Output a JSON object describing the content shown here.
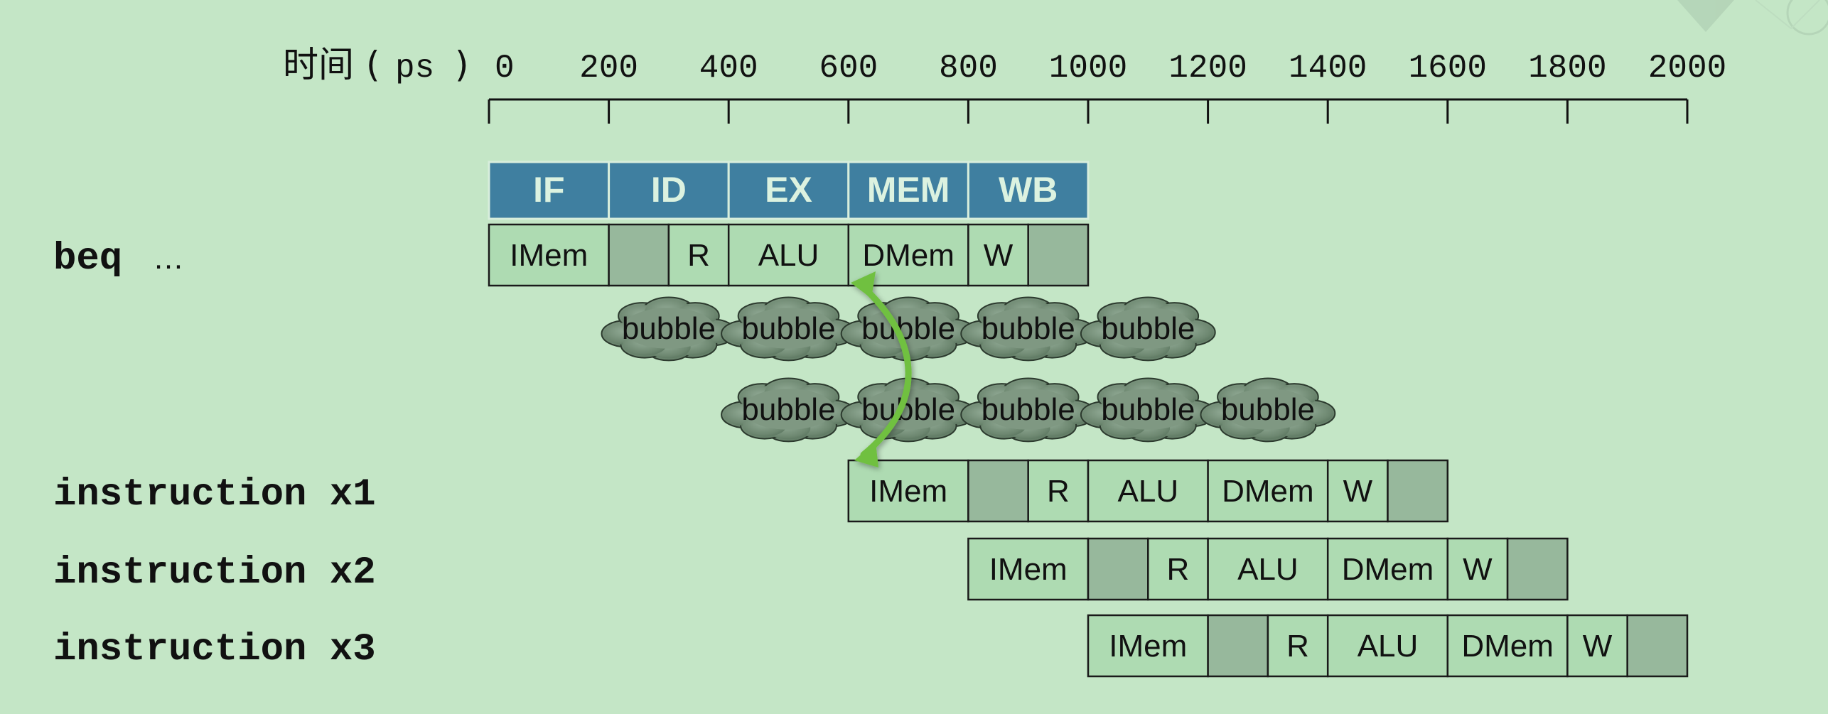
{
  "diagram": {
    "time_axis": {
      "label_prefix": "时间",
      "paren_open": "(",
      "unit": "ps",
      "paren_close": ")",
      "ticks": [
        "0",
        "200",
        "400",
        "600",
        "800",
        "1000",
        "1200",
        "1400",
        "1600",
        "1800",
        "2000"
      ]
    },
    "stage_header": [
      "IF",
      "ID",
      "EX",
      "MEM",
      "WB"
    ],
    "instructions": [
      {
        "label_main": "beq",
        "label_suffix": "…",
        "start_ps": 0,
        "cells": [
          "IMem",
          "",
          "R",
          "ALU",
          "DMem",
          "W",
          ""
        ]
      },
      {
        "label_main": "instruction x1",
        "label_suffix": "",
        "start_ps": 600,
        "cells": [
          "IMem",
          "",
          "R",
          "ALU",
          "DMem",
          "W",
          ""
        ]
      },
      {
        "label_main": "instruction x2",
        "label_suffix": "",
        "start_ps": 800,
        "cells": [
          "IMem",
          "",
          "R",
          "ALU",
          "DMem",
          "W",
          ""
        ]
      },
      {
        "label_main": "instruction x3",
        "label_suffix": "",
        "start_ps": 1000,
        "cells": [
          "IMem",
          "",
          "R",
          "ALU",
          "DMem",
          "W",
          ""
        ]
      }
    ],
    "bubble_rows": [
      {
        "start_ps": 200,
        "items": [
          "bubble",
          "bubble",
          "bubble",
          "bubble",
          "bubble"
        ]
      },
      {
        "start_ps": 400,
        "items": [
          "bubble",
          "bubble",
          "bubble",
          "bubble",
          "bubble"
        ]
      }
    ],
    "colors": {
      "background": "#c4e6c6",
      "header_fill": "#3f7fa0",
      "header_text": "#dcf2e0",
      "cell_fill": "#aedbb2",
      "cell_shaded": "#97b89c",
      "bubble_fill": "#6d8770",
      "arrow": "#6fc040"
    }
  }
}
